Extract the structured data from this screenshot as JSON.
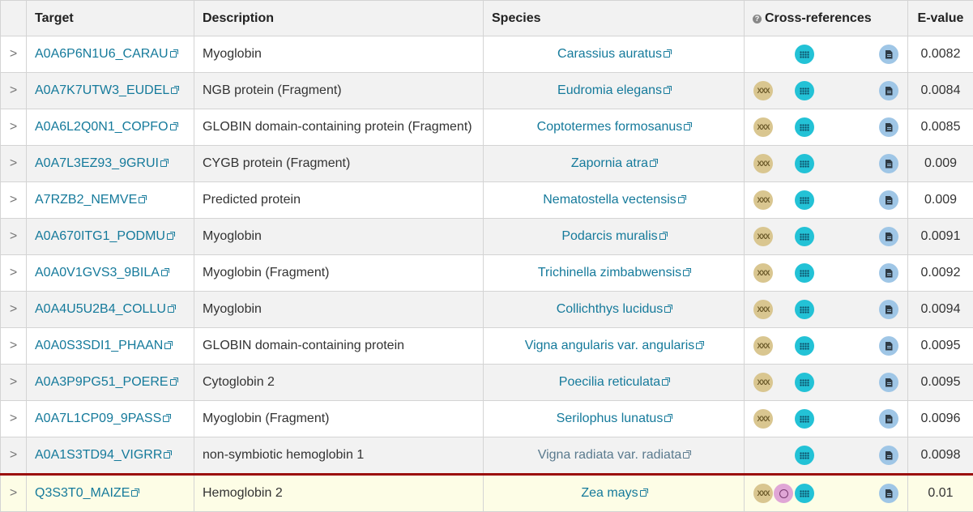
{
  "columns": {
    "target": "Target",
    "description": "Description",
    "species": "Species",
    "cross_references": "Cross-references",
    "evalue": "E-value"
  },
  "icons": {
    "expand": "chevron-right-icon",
    "external_link": "external-link-icon",
    "help": "help-icon",
    "dna": "dna-icon",
    "structure": "structure-icon",
    "grid": "grid-icon",
    "document": "document-icon"
  },
  "colors": {
    "link": "#157a9b",
    "highlight_border": "#9b0d0d",
    "highlight_bg": "#fdfde6"
  },
  "rows": [
    {
      "expand": ">",
      "target": "A0A6P6N1U6_CARAU",
      "description": "Myoglobin",
      "species": "Carassius auratus",
      "evalue": "0.0082",
      "dna": false,
      "structure": false,
      "grid": true,
      "doc": true,
      "species_grey": false
    },
    {
      "expand": ">",
      "target": "A0A7K7UTW3_EUDEL",
      "description": "NGB protein (Fragment)",
      "species": "Eudromia elegans",
      "evalue": "0.0084",
      "dna": true,
      "structure": false,
      "grid": true,
      "doc": true,
      "species_grey": false
    },
    {
      "expand": ">",
      "target": "A0A6L2Q0N1_COPFO",
      "description": "GLOBIN domain-containing protein (Fragment)",
      "species": "Coptotermes formosanus",
      "evalue": "0.0085",
      "dna": true,
      "structure": false,
      "grid": true,
      "doc": true,
      "species_grey": false
    },
    {
      "expand": ">",
      "target": "A0A7L3EZ93_9GRUI",
      "description": "CYGB protein (Fragment)",
      "species": "Zapornia atra",
      "evalue": "0.009",
      "dna": true,
      "structure": false,
      "grid": true,
      "doc": true,
      "species_grey": false
    },
    {
      "expand": ">",
      "target": "A7RZB2_NEMVE",
      "description": "Predicted protein",
      "species": "Nematostella vectensis",
      "evalue": "0.009",
      "dna": true,
      "structure": false,
      "grid": true,
      "doc": true,
      "species_grey": false
    },
    {
      "expand": ">",
      "target": "A0A670ITG1_PODMU",
      "description": "Myoglobin",
      "species": "Podarcis muralis",
      "evalue": "0.0091",
      "dna": true,
      "structure": false,
      "grid": true,
      "doc": true,
      "species_grey": false
    },
    {
      "expand": ">",
      "target": "A0A0V1GVS3_9BILA",
      "description": "Myoglobin (Fragment)",
      "species": "Trichinella zimbabwensis",
      "evalue": "0.0092",
      "dna": true,
      "structure": false,
      "grid": true,
      "doc": true,
      "species_grey": false
    },
    {
      "expand": ">",
      "target": "A0A4U5U2B4_COLLU",
      "description": "Myoglobin",
      "species": "Collichthys lucidus",
      "evalue": "0.0094",
      "dna": true,
      "structure": false,
      "grid": true,
      "doc": true,
      "species_grey": false
    },
    {
      "expand": ">",
      "target": "A0A0S3SDI1_PHAAN",
      "description": "GLOBIN domain-containing protein",
      "species": "Vigna angularis var. angularis",
      "evalue": "0.0095",
      "dna": true,
      "structure": false,
      "grid": true,
      "doc": true,
      "species_grey": false
    },
    {
      "expand": ">",
      "target": "A0A3P9PG51_POERE",
      "description": "Cytoglobin 2",
      "species": "Poecilia reticulata",
      "evalue": "0.0095",
      "dna": true,
      "structure": false,
      "grid": true,
      "doc": true,
      "species_grey": false
    },
    {
      "expand": ">",
      "target": "A0A7L1CP09_9PASS",
      "description": "Myoglobin (Fragment)",
      "species": "Serilophus lunatus",
      "evalue": "0.0096",
      "dna": true,
      "structure": false,
      "grid": true,
      "doc": true,
      "species_grey": false
    },
    {
      "expand": ">",
      "target": "A0A1S3TD94_VIGRR",
      "description": "non-symbiotic hemoglobin 1",
      "species": "Vigna radiata var. radiata",
      "evalue": "0.0098",
      "dna": false,
      "structure": false,
      "grid": true,
      "doc": true,
      "species_grey": true
    },
    {
      "expand": ">",
      "target": "Q3S3T0_MAIZE",
      "description": "Hemoglobin 2",
      "species": "Zea mays",
      "evalue": "0.01",
      "dna": true,
      "structure": true,
      "grid": true,
      "doc": true,
      "species_grey": false,
      "highlighted": true
    }
  ]
}
